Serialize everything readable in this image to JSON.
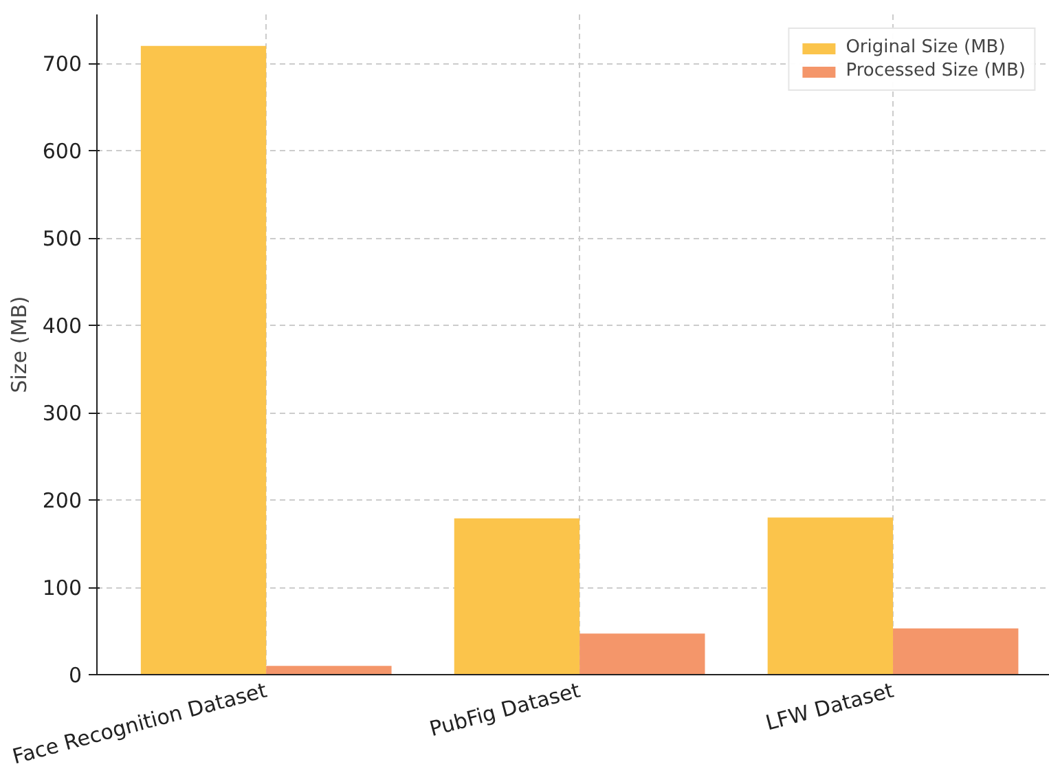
{
  "chart_data": {
    "type": "bar",
    "ylabel": "Size (MB)",
    "categories": [
      "Face Recognition Dataset",
      "PubFig Dataset",
      "LFW Dataset"
    ],
    "series": [
      {
        "name": "Original Size (MB)",
        "color": "#fbc44b",
        "values": [
          720,
          179,
          180
        ]
      },
      {
        "name": "Processed Size (MB)",
        "color": "#f4966a",
        "values": [
          10,
          47,
          53
        ]
      }
    ],
    "ylim": [
      0,
      756
    ],
    "yticks": [
      0,
      100,
      200,
      300,
      400,
      500,
      600,
      700
    ],
    "grid": true,
    "legend": "top right"
  }
}
